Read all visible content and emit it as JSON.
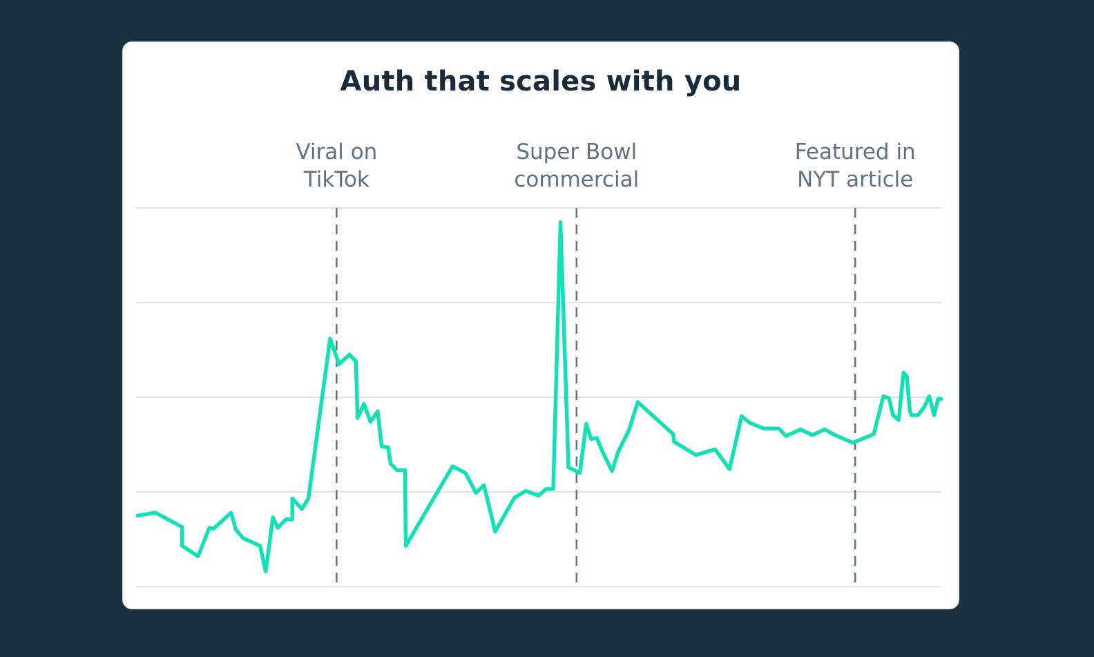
{
  "chart_data": {
    "type": "line",
    "title": "Auth that scales with you",
    "xlabel": "",
    "ylabel": "",
    "grid": true,
    "xlim": [
      0,
      100
    ],
    "ylim": [
      0,
      4
    ],
    "x": [
      0.2,
      2.4,
      5.7,
      5.7,
      7.7,
      9.1,
      9.6,
      10.4,
      11.8,
      12.4,
      13.3,
      15.4,
      16.1,
      17.0,
      17.6,
      18.6,
      19.4,
      19.4,
      20.6,
      21.4,
      24.1,
      25.2,
      26.5,
      27.3,
      27.5,
      28.3,
      29.1,
      30.0,
      30.5,
      31.3,
      31.6,
      32.4,
      33.4,
      33.5,
      39.3,
      40.9,
      42.2,
      43.2,
      44.6,
      47.0,
      48.4,
      50.0,
      50.9,
      51.8,
      52.7,
      53.7,
      55.1,
      55.9,
      56.5,
      57.2,
      57.9,
      59.1,
      59.9,
      61.2,
      62.3,
      66.7,
      66.8,
      69.5,
      71.9,
      73.7,
      75.2,
      76.2,
      77.9,
      79.8,
      80.7,
      82.5,
      84.0,
      85.5,
      86.8,
      89.0,
      91.6,
      92.8,
      93.5,
      94.0,
      94.7,
      95.3,
      95.7,
      96.1,
      96.3,
      97.1,
      97.9,
      98.5,
      99.1,
      99.6,
      100.0
    ],
    "y": [
      0.75,
      0.78,
      0.63,
      0.43,
      0.32,
      0.62,
      0.61,
      0.67,
      0.78,
      0.6,
      0.51,
      0.43,
      0.16,
      0.73,
      0.62,
      0.71,
      0.71,
      0.93,
      0.82,
      0.93,
      2.62,
      2.35,
      2.45,
      2.38,
      1.78,
      1.93,
      1.74,
      1.85,
      1.48,
      1.47,
      1.3,
      1.23,
      1.23,
      0.43,
      1.27,
      1.2,
      0.99,
      1.07,
      0.58,
      0.94,
      1.01,
      0.96,
      1.03,
      1.03,
      3.85,
      1.26,
      1.2,
      1.72,
      1.56,
      1.57,
      1.43,
      1.22,
      1.43,
      1.65,
      1.95,
      1.61,
      1.53,
      1.39,
      1.45,
      1.24,
      1.8,
      1.73,
      1.67,
      1.67,
      1.59,
      1.66,
      1.6,
      1.66,
      1.6,
      1.52,
      1.61,
      2.01,
      1.99,
      1.81,
      1.76,
      2.26,
      2.22,
      1.85,
      1.81,
      1.81,
      1.9,
      2.01,
      1.81,
      1.98,
      1.98
    ],
    "series": [
      {
        "name": "",
        "color": "#13e0b5"
      }
    ],
    "annotations": [
      {
        "x": 24.9,
        "lines": [
          "Viral on",
          "TikTok"
        ]
      },
      {
        "x": 54.7,
        "lines": [
          "Super Bowl",
          "commercial"
        ]
      },
      {
        "x": 89.3,
        "lines": [
          "Featured in",
          "NYT article"
        ]
      }
    ]
  },
  "colors": {
    "background": "#1b313f",
    "card": "#ffffff",
    "line": "#13e0b5",
    "grid": "#dde3e7",
    "marker": "#5f727e",
    "title": "#1b2a38"
  }
}
